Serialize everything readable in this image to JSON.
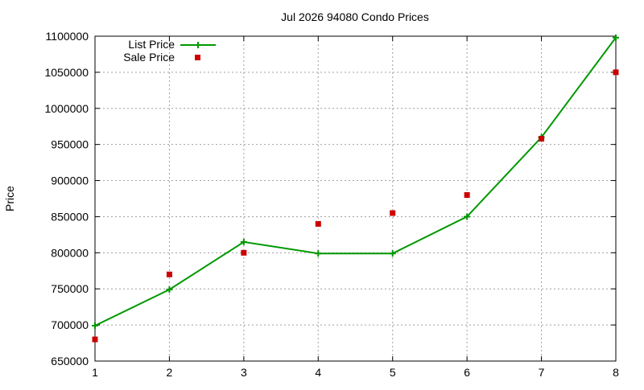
{
  "chart_data": {
    "type": "line",
    "title": "Jul 2026 94080 Condo Prices",
    "xlabel": "",
    "ylabel": "Price",
    "x": [
      1,
      2,
      3,
      4,
      5,
      6,
      7,
      8
    ],
    "xlim": [
      1,
      8
    ],
    "ylim": [
      650000,
      1100000
    ],
    "x_ticks": [
      1,
      2,
      3,
      4,
      5,
      6,
      7,
      8
    ],
    "y_ticks": [
      650000,
      700000,
      750000,
      800000,
      850000,
      900000,
      950000,
      1000000,
      1050000,
      1100000
    ],
    "grid": true,
    "legend_position": "top-left",
    "series": [
      {
        "name": "List Price",
        "style": "line-with-plus-markers",
        "color": "#009900",
        "values": [
          699000,
          749000,
          815000,
          799000,
          799000,
          850000,
          960000,
          1098000
        ]
      },
      {
        "name": "Sale Price",
        "style": "square-markers",
        "color": "#cc0000",
        "values": [
          680000,
          770000,
          800000,
          840000,
          855000,
          880000,
          958000,
          1050000
        ]
      }
    ]
  }
}
